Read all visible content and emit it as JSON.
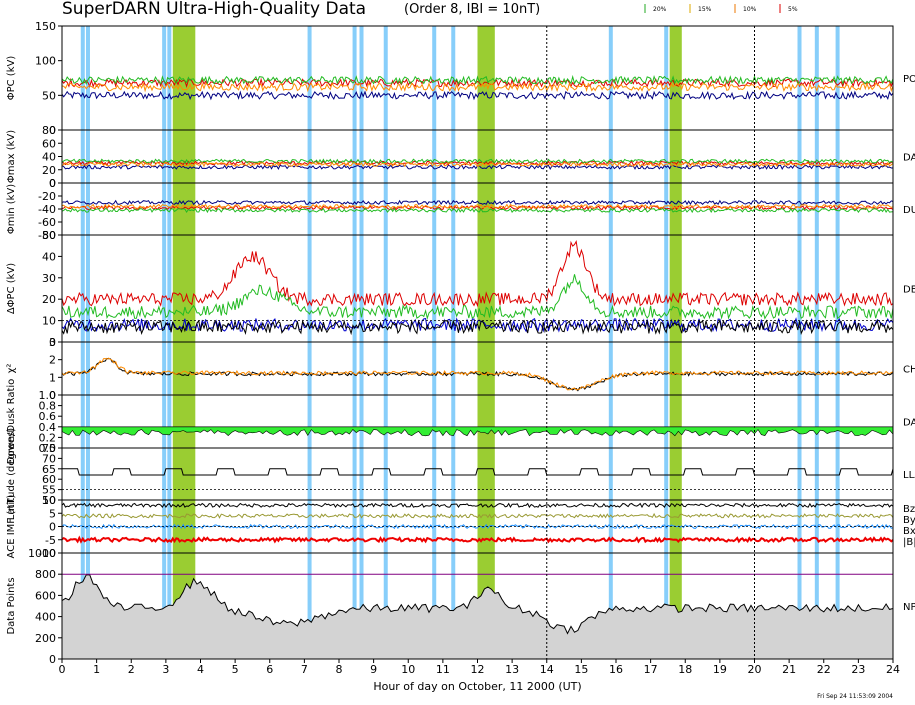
{
  "header": {
    "title": "SuperDARN Ultra-High-Quality Data",
    "subtitle": "(Order 8, IBI = 10nT)",
    "legend_items": [
      {
        "label": "20%",
        "color": "#22aa22"
      },
      {
        "label": "15%",
        "color": "#ddaa00"
      },
      {
        "label": "10%",
        "color": "#ee7700"
      },
      {
        "label": "5%",
        "color": "#dd0000"
      }
    ]
  },
  "footer": {
    "xlabel": "Hour of day on October, 11 2000 (UT)",
    "timestamp": "Fri Sep 24 11:53:09 2004"
  },
  "colors": {
    "highlight_blue": "#87cefa",
    "highlight_green": "#9acd32",
    "navy": "#000080",
    "red": "#dd0000",
    "green": "#22bb22",
    "orange": "#ff8c00",
    "gray_fill": "#d3d3d3",
    "down_dusk_fill": "#33ee33"
  },
  "chart_data": {
    "type": "line",
    "x_range": [
      0,
      24
    ],
    "x_ticks": [
      "0",
      "1",
      "2",
      "3",
      "4",
      "5",
      "6",
      "7",
      "8",
      "9",
      "10",
      "11",
      "12",
      "13",
      "14",
      "15",
      "16",
      "17",
      "18",
      "19",
      "20",
      "21",
      "22",
      "23",
      "24"
    ],
    "dashed_vertical_hours": [
      14,
      20
    ],
    "highlight_blue_hours": [
      0.6,
      0.75,
      2.95,
      3.1,
      7.15,
      8.45,
      8.65,
      9.35,
      10.75,
      11.3,
      15.85,
      17.45,
      21.3,
      21.8,
      22.4
    ],
    "highlight_green_ranges": [
      [
        3.2,
        3.85
      ],
      [
        12.0,
        12.5
      ],
      [
        17.55,
        17.9
      ]
    ],
    "panels": [
      {
        "id": "phi-pc",
        "ylabel": "ΦPC (kV)",
        "ylim": [
          0,
          150
        ],
        "ticks": [
          "0",
          "50",
          "100",
          "150"
        ],
        "right_label": "PO",
        "series": [
          {
            "color": "#000080",
            "base": 50
          },
          {
            "color": "#dd0000",
            "base": 68
          },
          {
            "color": "#22bb22",
            "base": 72
          },
          {
            "color": "#ff8c00",
            "base": 62
          }
        ]
      },
      {
        "id": "phi-max",
        "ylabel": "Φmax (kV)",
        "ylim": [
          0,
          80
        ],
        "ticks": [
          "0",
          "20",
          "40",
          "60",
          "80"
        ],
        "right_label": "DAY",
        "series": [
          {
            "color": "#000080",
            "base": 24
          },
          {
            "color": "#dd0000",
            "base": 30
          },
          {
            "color": "#22bb22",
            "base": 33
          },
          {
            "color": "#ff8c00",
            "base": 28
          }
        ]
      },
      {
        "id": "phi-min",
        "ylabel": "Φmin (kV)",
        "ylim": [
          -80,
          0
        ],
        "ticks": [
          "-80",
          "-60",
          "-40",
          "-20",
          "0"
        ],
        "right_label": "DU",
        "series": [
          {
            "color": "#000080",
            "base": -30
          },
          {
            "color": "#dd0000",
            "base": -38
          },
          {
            "color": "#22bb22",
            "base": -42
          },
          {
            "color": "#ff8c00",
            "base": -36
          }
        ]
      },
      {
        "id": "delta-phi",
        "ylabel": "ΔΦPC (kV)",
        "ylim": [
          0,
          50
        ],
        "ticks": [
          "0",
          "10",
          "20",
          "30",
          "40",
          "50"
        ],
        "right_label": "DE",
        "series": [
          {
            "color": "#dd0000",
            "base": 20
          },
          {
            "color": "#22bb22",
            "base": 14
          },
          {
            "color": "#0000cc",
            "base": 8
          },
          {
            "color": "#000000",
            "base": 7
          }
        ]
      },
      {
        "id": "chi-sq",
        "ylabel": "χ²",
        "ylim": [
          0,
          3
        ],
        "ticks": [
          "0",
          "1",
          "2",
          "3"
        ],
        "right_label": "CH",
        "series": [
          {
            "color": "#000000",
            "base": 1.2
          },
          {
            "color": "#ff8c00",
            "base": 1.25
          }
        ]
      },
      {
        "id": "ratio",
        "ylabel": "Down/Dusk Ratio",
        "ylim": [
          0,
          1.0
        ],
        "ticks": [
          "0.0",
          "0.2",
          "0.4",
          "0.6",
          "0.8",
          "1.0"
        ],
        "right_label": "DAY",
        "series": [
          {
            "color": "#000000",
            "base": 0.35
          }
        ]
      },
      {
        "id": "latitude",
        "ylabel": "Latitude (degrees)",
        "ylim": [
          50,
          75
        ],
        "ticks": [
          "50",
          "55",
          "60",
          "65",
          "70",
          "75"
        ],
        "right_label": "LLA",
        "series": [
          {
            "color": "#000000",
            "base": 62
          }
        ]
      },
      {
        "id": "imf",
        "ylabel": "ACE IMF (nT)",
        "ylim": [
          -10,
          10
        ],
        "ticks": [
          "-10",
          "-5",
          "0",
          "5",
          "10"
        ],
        "right_labels": [
          "Bz",
          "By",
          "Bx",
          "|B|"
        ],
        "series": [
          {
            "color": "#000000",
            "base": 8,
            "name": "|B|"
          },
          {
            "color": "#999933",
            "base": 4,
            "name": "By"
          },
          {
            "color": "#1e90ff",
            "base": 0,
            "name": "Bx"
          },
          {
            "color": "#ee0000",
            "base": -5,
            "name": "Bz"
          }
        ]
      },
      {
        "id": "points",
        "ylabel": "Data Points",
        "ylim": [
          0,
          1000
        ],
        "ticks": [
          "0",
          "200",
          "400",
          "600",
          "800",
          "1000"
        ],
        "right_label": "NP",
        "series": [
          {
            "color": "#000000",
            "base": 500
          }
        ]
      }
    ]
  }
}
